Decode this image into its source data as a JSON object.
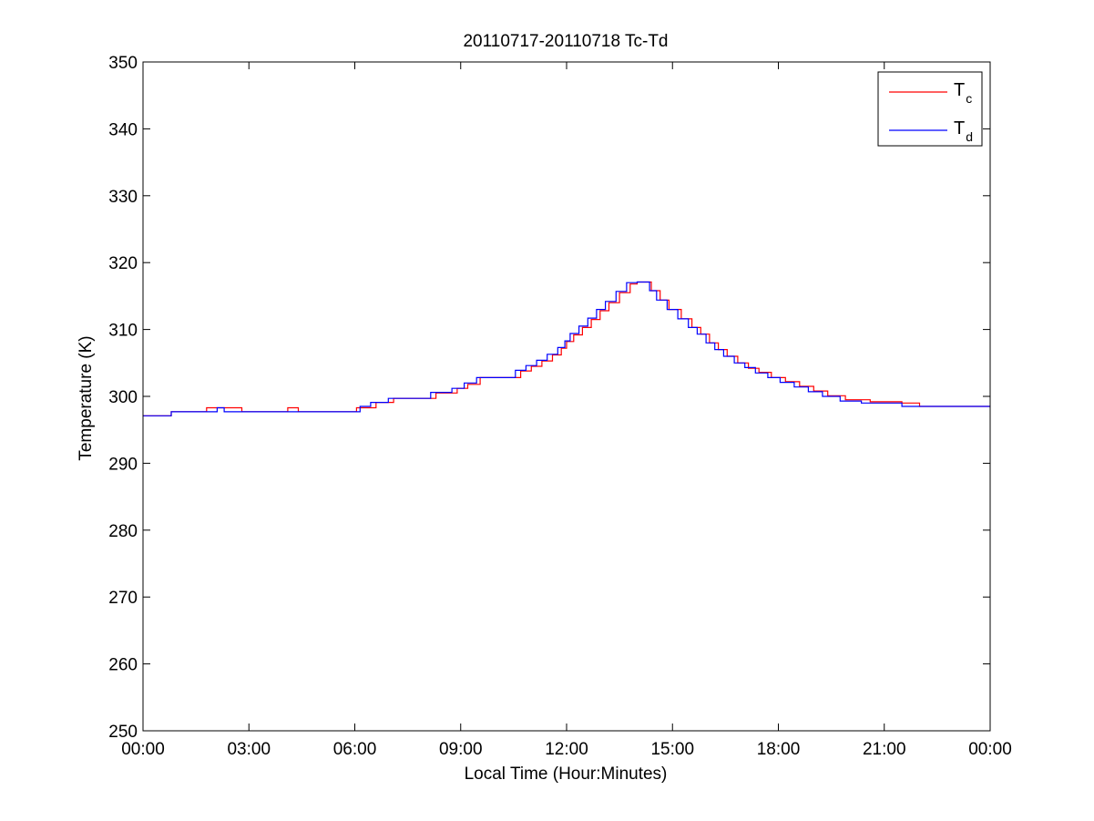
{
  "chart_data": {
    "type": "line",
    "title": "20110717-20110718 Tc-Td",
    "xlabel": "Local Time (Hour:Minutes)",
    "ylabel": "Temperature (K)",
    "x_unit": "hours",
    "xlim": [
      0,
      24
    ],
    "ylim": [
      250,
      350
    ],
    "x_ticks": [
      0,
      3,
      6,
      9,
      12,
      15,
      18,
      21,
      24
    ],
    "x_tick_labels": [
      "00:00",
      "03:00",
      "06:00",
      "09:00",
      "12:00",
      "15:00",
      "18:00",
      "21:00",
      "00:00"
    ],
    "y_ticks": [
      250,
      260,
      270,
      280,
      290,
      300,
      310,
      320,
      330,
      340,
      350
    ],
    "y_tick_labels": [
      "250",
      "260",
      "270",
      "280",
      "290",
      "300",
      "310",
      "320",
      "330",
      "340",
      "350"
    ],
    "grid": false,
    "legend_position": "top-right",
    "line_style": "step",
    "series": [
      {
        "name": "Tc",
        "legend_main": "T",
        "legend_sub": "c",
        "color": "#ff0000",
        "x": [
          0,
          0.8,
          1.8,
          2.8,
          4.1,
          4.4,
          6.05,
          6.6,
          7.1,
          8.3,
          8.9,
          9.2,
          9.55,
          10.7,
          11.0,
          11.3,
          11.6,
          11.85,
          12.0,
          12.2,
          12.45,
          12.7,
          12.95,
          13.2,
          13.5,
          13.8,
          14.0,
          14.4,
          14.65,
          14.9,
          15.25,
          15.55,
          15.8,
          16.05,
          16.3,
          16.55,
          16.85,
          17.15,
          17.45,
          17.8,
          18.2,
          18.6,
          19.0,
          19.4,
          19.9,
          20.6,
          21.5,
          22.0,
          24
        ],
        "y": [
          297.1,
          297.7,
          298.3,
          297.7,
          298.3,
          297.7,
          298.3,
          299.1,
          299.7,
          300.5,
          301.2,
          301.8,
          302.8,
          303.8,
          304.5,
          305.3,
          306.2,
          307.2,
          308.2,
          309.2,
          310.3,
          311.5,
          312.8,
          314.0,
          315.5,
          316.8,
          317.1,
          315.8,
          314.4,
          313.0,
          311.6,
          310.3,
          309.3,
          308.0,
          307.0,
          306.0,
          305.0,
          304.2,
          303.6,
          302.8,
          302.2,
          301.5,
          300.8,
          300.1,
          299.5,
          299.2,
          299.0,
          298.5,
          298.5
        ]
      },
      {
        "name": "Td",
        "legend_main": "T",
        "legend_sub": "d",
        "color": "#0000ff",
        "x": [
          0,
          0.8,
          2.1,
          2.3,
          6.15,
          6.45,
          6.95,
          8.15,
          8.75,
          9.1,
          9.45,
          10.55,
          10.85,
          11.15,
          11.45,
          11.75,
          11.95,
          12.1,
          12.35,
          12.6,
          12.85,
          13.1,
          13.4,
          13.7,
          14.0,
          14.35,
          14.55,
          14.85,
          15.15,
          15.45,
          15.7,
          15.95,
          16.2,
          16.45,
          16.75,
          17.05,
          17.35,
          17.7,
          18.05,
          18.45,
          18.85,
          19.25,
          19.75,
          20.35,
          21.5,
          24
        ],
        "y": [
          297.1,
          297.7,
          298.3,
          297.7,
          298.5,
          299.1,
          299.7,
          300.6,
          301.2,
          302.0,
          302.8,
          303.9,
          304.6,
          305.4,
          306.3,
          307.3,
          308.3,
          309.4,
          310.5,
          311.7,
          313.0,
          314.2,
          315.7,
          317.0,
          317.1,
          315.8,
          314.4,
          313.0,
          311.6,
          310.3,
          309.3,
          308.0,
          307.0,
          306.0,
          305.0,
          304.3,
          303.5,
          302.8,
          302.1,
          301.4,
          300.7,
          300.0,
          299.3,
          299.0,
          298.5,
          298.5
        ]
      }
    ]
  }
}
